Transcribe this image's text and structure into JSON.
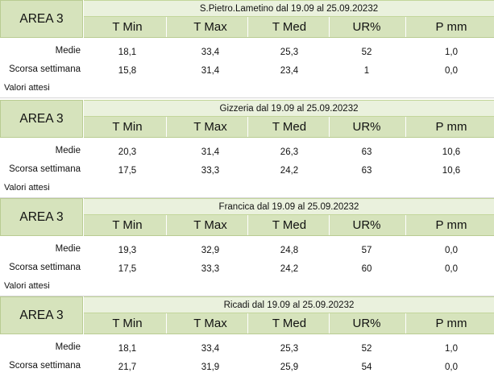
{
  "columns": [
    "T Min",
    "T Max",
    "T Med",
    "UR%",
    "P mm"
  ],
  "row_labels": {
    "medie": "Medie",
    "scorsa": "Scorsa settimana",
    "attesi": "Valori attesi"
  },
  "blocks": [
    {
      "area": "AREA 3",
      "title": "S.Pietro.Lametino dal 19.09 al 25.09.20232",
      "medie": [
        "18,1",
        "33,4",
        "25,3",
        "52",
        "1,0"
      ],
      "scorsa": [
        "15,8",
        "31,4",
        "23,4",
        "1",
        "0,0"
      ]
    },
    {
      "area": "AREA 3",
      "title": "Gizzeria dal 19.09 al 25.09.20232",
      "medie": [
        "20,3",
        "31,4",
        "26,3",
        "63",
        "10,6"
      ],
      "scorsa": [
        "17,5",
        "33,3",
        "24,2",
        "63",
        "10,6"
      ]
    },
    {
      "area": "AREA 3",
      "title": "Francica dal 19.09 al 25.09.20232",
      "medie": [
        "19,3",
        "32,9",
        "24,8",
        "57",
        "0,0"
      ],
      "scorsa": [
        "17,5",
        "33,3",
        "24,2",
        "60",
        "0,0"
      ]
    },
    {
      "area": "AREA 3",
      "title": "Ricadi  dal 19.09 al 25.09.20232",
      "medie": [
        "18,1",
        "33,4",
        "25,3",
        "52",
        "1,0"
      ],
      "scorsa": [
        "21,7",
        "31,9",
        "25,9",
        "54",
        "0,0"
      ]
    }
  ],
  "colors": {
    "header_dark": "#d6e3bc",
    "header_light": "#eaf1dd",
    "border": "#b9cc92"
  }
}
